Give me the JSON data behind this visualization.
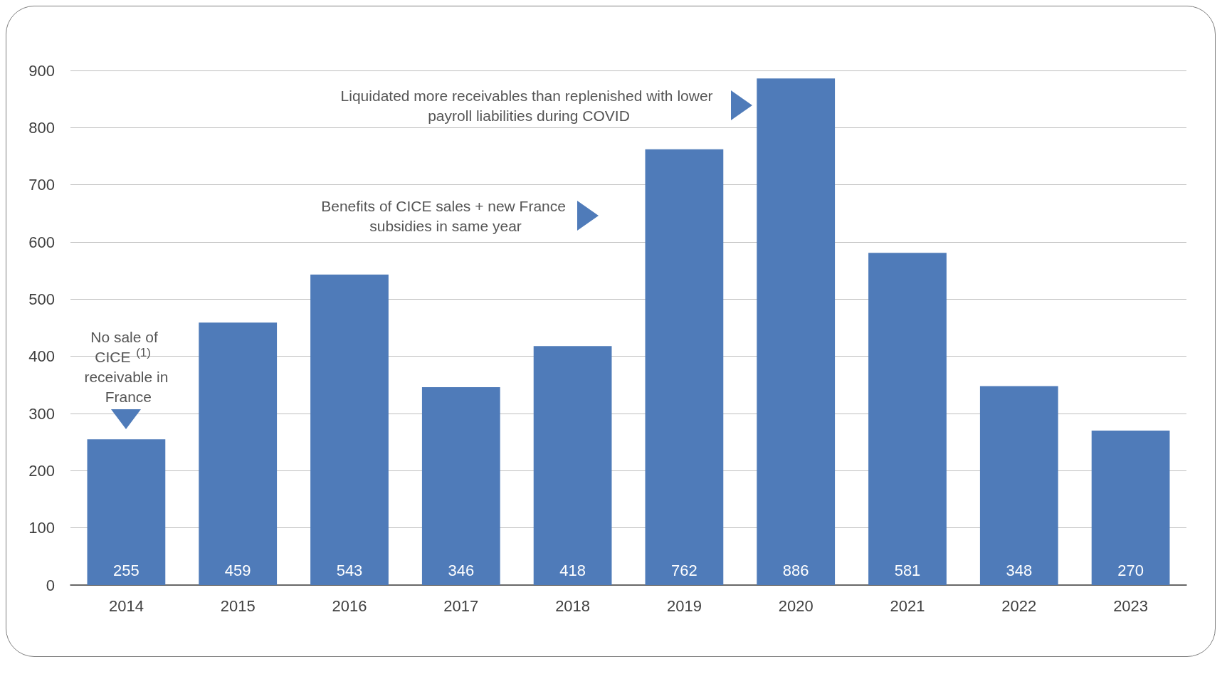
{
  "chart_data": {
    "type": "bar",
    "categories": [
      "2014",
      "2015",
      "2016",
      "2017",
      "2018",
      "2019",
      "2020",
      "2021",
      "2022",
      "2023"
    ],
    "values": [
      255,
      459,
      543,
      346,
      418,
      762,
      886,
      581,
      348,
      270
    ],
    "color": "#4f7bb9",
    "ylim": [
      0,
      900
    ],
    "yticks": [
      0,
      100,
      200,
      300,
      400,
      500,
      600,
      700,
      800,
      900
    ],
    "grid": "y",
    "data_labels": true,
    "annotations": [
      {
        "text": "No sale of CICE$^{(1)}$ receivable in France",
        "x": "2014",
        "y": 255
      },
      "Benefits of CICE sales + new France subsidies in same year",
      "Liquidated more receivables than replenished with lower payroll liabilities during COVID"
    ]
  }
}
